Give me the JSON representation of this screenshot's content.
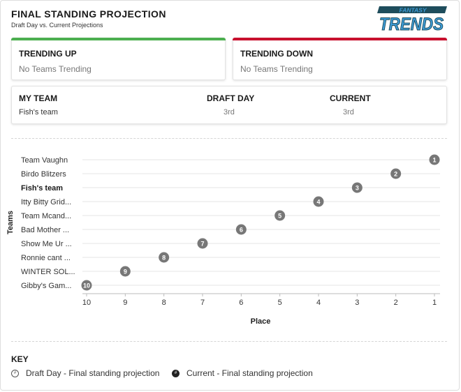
{
  "header": {
    "title": "FINAL STANDING PROJECTION",
    "subtitle": "Draft Day vs. Current Projections",
    "logo_top": "FANTASY",
    "logo_main": "TRENDS"
  },
  "trending_up": {
    "label": "TRENDING UP",
    "value": "No Teams Trending",
    "color": "#4caf50"
  },
  "trending_down": {
    "label": "TRENDING DOWN",
    "value": "No Teams Trending",
    "color": "#c8102e"
  },
  "my_team": {
    "col_team": "MY TEAM",
    "col_draft": "DRAFT DAY",
    "col_current": "CURRENT",
    "team": "Fish's team",
    "draft_day": "3rd",
    "current": "3rd"
  },
  "chart_data": {
    "type": "scatter",
    "xlabel": "Place",
    "ylabel": "Teams",
    "x_ticks": [
      "10",
      "9",
      "8",
      "7",
      "6",
      "5",
      "4",
      "3",
      "2",
      "1"
    ],
    "xlim": [
      10,
      1
    ],
    "grid": true,
    "teams": [
      {
        "name": "Team Vaughn",
        "place": 1,
        "highlight": false
      },
      {
        "name": "Birdo Blitzers",
        "place": 2,
        "highlight": false
      },
      {
        "name": "Fish's team",
        "place": 3,
        "highlight": true
      },
      {
        "name": "Itty Bitty Grid...",
        "place": 4,
        "highlight": false
      },
      {
        "name": "Team Mcand...",
        "place": 5,
        "highlight": false
      },
      {
        "name": "Bad Mother ...",
        "place": 6,
        "highlight": false
      },
      {
        "name": "Show Me Ur ...",
        "place": 7,
        "highlight": false
      },
      {
        "name": "Ronnie cant ...",
        "place": 8,
        "highlight": false
      },
      {
        "name": "WINTER SOL...",
        "place": 9,
        "highlight": false
      },
      {
        "name": "Gibby's Gam...",
        "place": 10,
        "highlight": false
      }
    ],
    "marker_color": "#777777"
  },
  "key": {
    "title": "KEY",
    "draft_label": "Draft Day - Final standing projection",
    "current_label": "Current - Final standing projection",
    "draft_symbol": "#",
    "current_symbol": "#"
  },
  "colors": {
    "logo_dark": "#1e4d5c",
    "logo_light": "#3d9bd6"
  }
}
